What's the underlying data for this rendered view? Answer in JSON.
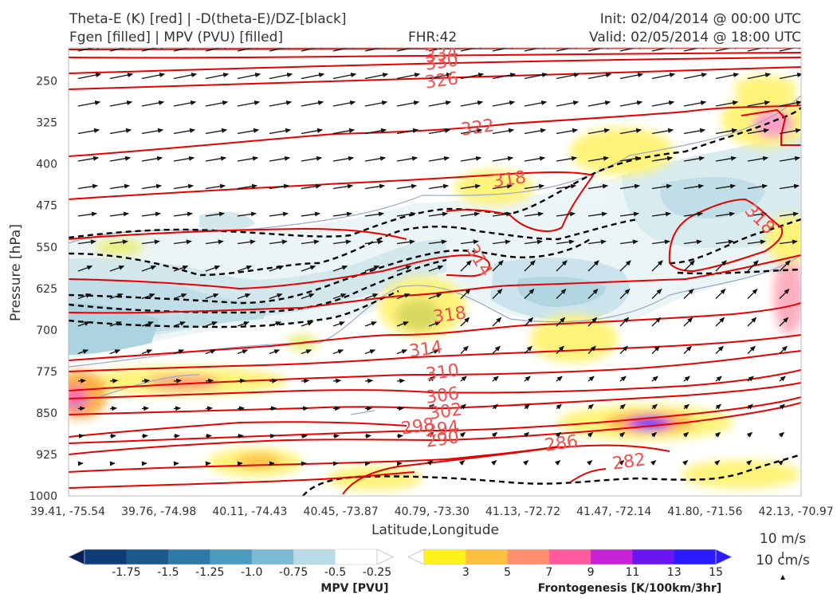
{
  "header": {
    "title_line1": "Theta-E (K) [red] | -D(theta-E)/DZ-[black]",
    "title_line2": "Fgen [filled] | MPV (PVU) [filled]",
    "fhr": "FHR:42",
    "init": "Init: 02/04/2014 @ 00:00 UTC",
    "valid": "Valid: 02/05/2014 @ 18:00 UTC"
  },
  "chart_data": {
    "type": "cross-section",
    "ylabel": "Pressure [hPa]",
    "xlabel": "Latitude,Longitude",
    "y_axis": {
      "ticks": [
        250,
        325,
        400,
        475,
        550,
        625,
        700,
        775,
        850,
        925,
        1000
      ],
      "ylim": [
        190,
        1000
      ],
      "inverted": true
    },
    "x_axis": {
      "ticks": [
        "39.41, -75.54",
        "39.76, -74.98",
        "40.11, -74.43",
        "40.45, -73.87",
        "40.79, -73.30",
        "41.13, -72.72",
        "41.47, -72.14",
        "41.80, -71.56",
        "42.13, -70.97"
      ]
    },
    "theta_e_contour_labels": [
      {
        "label": "334",
        "x_frac": 0.525,
        "p": 198
      },
      {
        "label": "330",
        "x_frac": 0.525,
        "p": 212
      },
      {
        "label": "326",
        "x_frac": 0.525,
        "p": 237
      },
      {
        "label": "322",
        "x_frac": 0.915,
        "p": 350
      },
      {
        "label": "318",
        "x_frac": 1.0,
        "p": 430
      },
      {
        "label": "318",
        "x_frac": 1.53,
        "p": 510
      },
      {
        "label": "314",
        "x_frac": 0.92,
        "p": 598
      },
      {
        "label": "318",
        "x_frac": 0.82,
        "p": 683
      },
      {
        "label": "314",
        "x_frac": 0.76,
        "p": 735
      },
      {
        "label": "310",
        "x_frac": 0.82,
        "p": 785
      },
      {
        "label": "306",
        "x_frac": 0.83,
        "p": 810
      },
      {
        "label": "302",
        "x_frac": 0.84,
        "p": 840
      },
      {
        "label": "298",
        "x_frac": 0.74,
        "p": 870
      },
      {
        "label": "294",
        "x_frac": 0.84,
        "p": 875
      },
      {
        "label": "290",
        "x_frac": 0.84,
        "p": 890
      },
      {
        "label": "286",
        "x_frac": 1.15,
        "p": 890
      },
      {
        "label": "282",
        "x_frac": 1.26,
        "p": 935
      }
    ],
    "wind_legend": [
      "10 m/s",
      "10 cm/s"
    ],
    "mpv_colorbar": {
      "title": "MPV [PVU]",
      "ticks": [
        "-1.75",
        "-1.5",
        "-1.25",
        "-1.0",
        "-0.75",
        "-0.5",
        "-0.25"
      ],
      "colors": [
        "#0a1f5a",
        "#0f3c78",
        "#1a5a8c",
        "#2b7ba6",
        "#4a9cc0",
        "#7cbad4",
        "#b9dbe6",
        "#ffffff"
      ]
    },
    "fgen_colorbar": {
      "title": "Frontogenesis [K/100km/3hr]",
      "ticks": [
        "3",
        "5",
        "7",
        "9",
        "11",
        "13",
        "15"
      ],
      "colors": [
        "#ffffff",
        "#fff11a",
        "#ffc040",
        "#ff8f6e",
        "#ff5aa0",
        "#c822d8",
        "#6a16f2",
        "#2a1cff"
      ]
    }
  }
}
